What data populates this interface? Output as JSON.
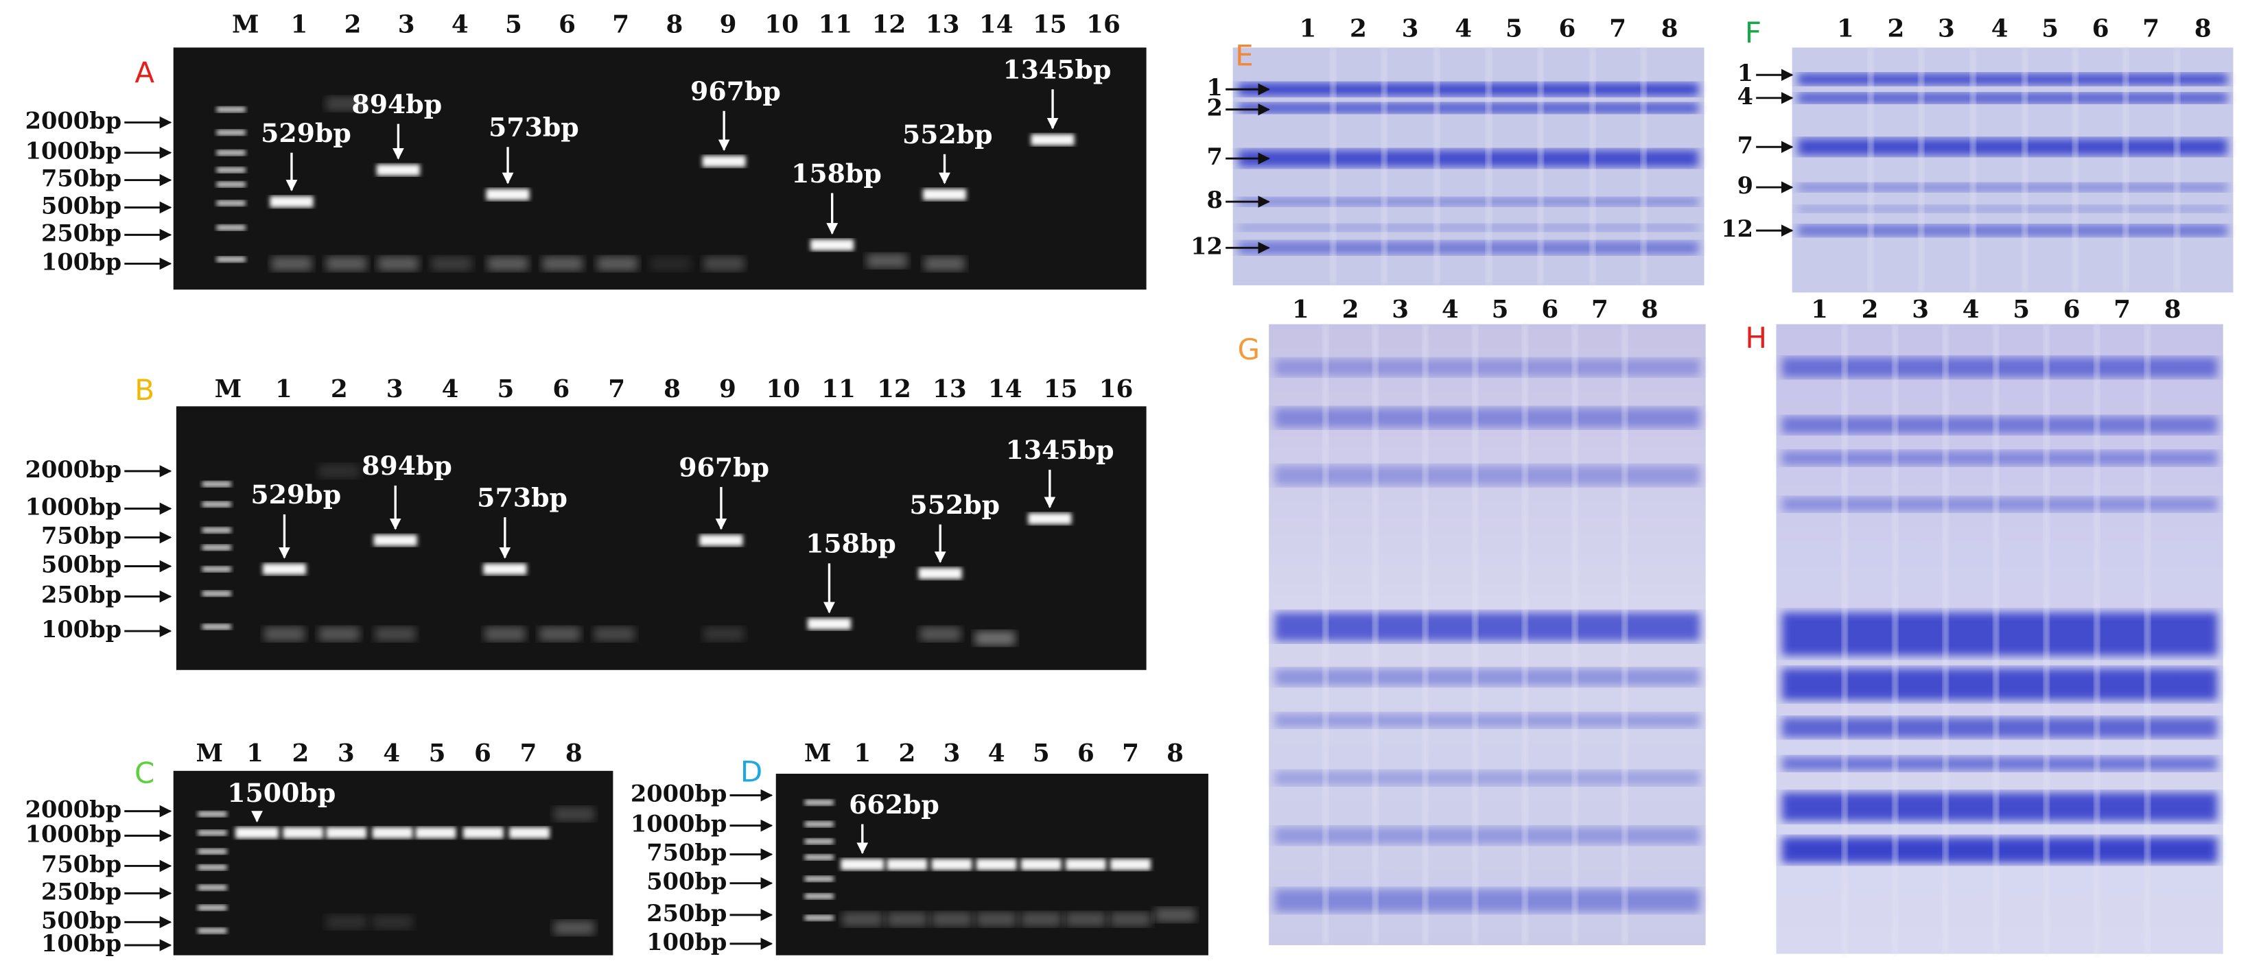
{
  "panels": [
    {
      "label": "A",
      "lanes": [
        "M",
        "1",
        "2",
        "3",
        "4",
        "5",
        "6",
        "7",
        "8",
        "9",
        "10",
        "11",
        "12",
        "13",
        "14",
        "15",
        "16"
      ],
      "markers": [
        "2000bp",
        "1000bp",
        "750bp",
        "500bp",
        "250bp",
        "100bp"
      ],
      "bands": [
        "529bp",
        "894bp",
        "573bp",
        "967bp",
        "158bp",
        "552bp",
        "1345bp"
      ]
    },
    {
      "label": "B",
      "lanes": [
        "M",
        "1",
        "2",
        "3",
        "4",
        "5",
        "6",
        "7",
        "8",
        "9",
        "10",
        "11",
        "12",
        "13",
        "14",
        "15",
        "16"
      ],
      "markers": [
        "2000bp",
        "1000bp",
        "750bp",
        "500bp",
        "250bp",
        "100bp"
      ],
      "bands": [
        "529bp",
        "894bp",
        "573bp",
        "967bp",
        "158bp",
        "552bp",
        "1345bp"
      ]
    },
    {
      "label": "C",
      "lanes": [
        "M",
        "1",
        "2",
        "3",
        "4",
        "5",
        "6",
        "7",
        "8"
      ],
      "markers": [
        "2000bp",
        "1000bp",
        "750bp",
        "250bp",
        "500bp",
        "100bp"
      ],
      "bands": [
        "1500bp"
      ]
    },
    {
      "label": "D",
      "lanes": [
        "M",
        "1",
        "2",
        "3",
        "4",
        "5",
        "6",
        "7",
        "8"
      ],
      "markers": [
        "2000bp",
        "1000bp",
        "750bp",
        "500bp",
        "250bp",
        "100bp"
      ],
      "bands": [
        "662bp"
      ]
    },
    {
      "label": "E",
      "lanes": [
        "1",
        "2",
        "3",
        "4",
        "5",
        "6",
        "7",
        "8"
      ],
      "markers": [
        "1",
        "2",
        "7",
        "8",
        "12"
      ],
      "bands": []
    },
    {
      "label": "F",
      "lanes": [
        "1",
        "2",
        "3",
        "4",
        "5",
        "6",
        "7",
        "8"
      ],
      "markers": [
        "1",
        "4",
        "7",
        "9",
        "12"
      ],
      "bands": []
    },
    {
      "label": "G",
      "lanes": [
        "1",
        "2",
        "3",
        "4",
        "5",
        "6",
        "7",
        "8"
      ],
      "markers": [],
      "bands": []
    },
    {
      "label": "H",
      "lanes": [
        "1",
        "2",
        "3",
        "4",
        "5",
        "6",
        "7",
        "8"
      ],
      "markers": [],
      "bands": []
    }
  ]
}
